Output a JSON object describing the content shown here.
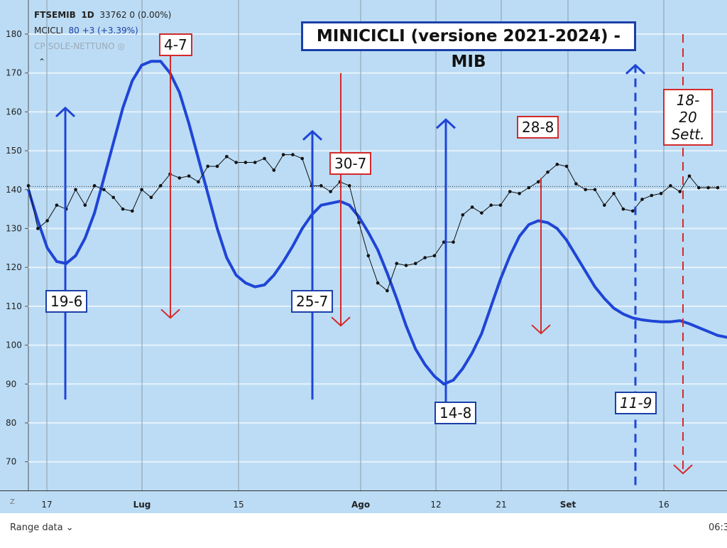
{
  "legend": {
    "symbol": "FTSEMIB",
    "interval": "1D",
    "price": "33762",
    "change": "0 (0.00%)",
    "indicator": "MCICLI",
    "indicator_value": "80",
    "indicator_change": "+3 (+3.39%)",
    "hidden_indicator": "CP:SOLE-NETTUNO"
  },
  "bottom": {
    "range_label": "Range data",
    "time": "06:3",
    "z_label": "Z"
  },
  "chart_data": {
    "type": "line",
    "title": "MINICICLI (versione 2021-2024) - MIB",
    "ylim": [
      65,
      188
    ],
    "yticks": [
      70,
      80,
      90,
      100,
      110,
      120,
      130,
      140,
      150,
      160,
      170,
      180
    ],
    "xticks": [
      "17",
      "Lug",
      "15",
      "Ago",
      "12",
      "21",
      "Set",
      "16"
    ],
    "reference_line": 140.8,
    "series": [
      {
        "name": "FTSEMIB",
        "color": "#111111",
        "values": [
          141,
          130,
          132,
          136,
          135,
          140,
          136,
          141,
          140,
          138,
          135,
          134.5,
          140,
          138,
          141,
          144,
          143,
          143.5,
          142,
          146,
          146,
          148.5,
          147,
          147,
          147,
          148,
          145,
          149,
          149,
          148,
          141,
          141,
          139.5,
          142,
          141,
          131.5,
          123,
          116,
          114,
          121,
          120.5,
          121,
          122.5,
          123,
          126.5,
          126.5,
          133.5,
          135.5,
          134,
          136,
          136,
          139.5,
          139,
          140.5,
          142,
          144.5,
          146.5,
          146,
          141.5,
          140,
          140,
          136,
          139,
          135,
          134.5,
          137.5,
          138.5,
          139,
          141,
          139.5,
          143.5,
          140.5,
          140.5,
          140.5
        ]
      },
      {
        "name": "MCICLI",
        "color": "#1f45d6",
        "values": [
          140,
          132,
          125,
          121.5,
          121,
          123,
          127.5,
          134,
          143,
          152,
          161,
          168,
          172,
          173,
          173,
          170,
          165,
          157,
          148,
          139,
          130,
          122.5,
          118,
          116,
          115,
          115.5,
          118,
          121.5,
          125.5,
          130,
          133.5,
          136,
          136.5,
          137,
          136,
          133,
          129,
          124.5,
          118.5,
          112,
          105,
          99,
          95,
          92,
          90,
          91,
          94,
          98,
          103,
          110,
          117,
          123,
          128,
          131,
          132,
          131.5,
          130,
          127,
          123,
          119,
          115,
          112,
          109.5,
          108,
          107,
          106.5,
          106.2,
          106,
          106,
          106.3,
          105.5,
          104.5,
          103.5,
          102.5,
          102
        ]
      }
    ],
    "annotations": [
      {
        "label": "19-6",
        "type": "minimum",
        "color": "#1f45d6"
      },
      {
        "label": "4-7",
        "type": "maximum",
        "color": "#d42a2a"
      },
      {
        "label": "25-7",
        "type": "minimum",
        "color": "#1f45d6"
      },
      {
        "label": "30-7",
        "type": "maximum",
        "color": "#d42a2a"
      },
      {
        "label": "14-8",
        "type": "minimum",
        "color": "#1f45d6"
      },
      {
        "label": "28-8",
        "type": "maximum",
        "color": "#d42a2a"
      },
      {
        "label": "11-9",
        "type": "minimum-projected",
        "color": "#1f45d6"
      },
      {
        "label": "18-20 Sett.",
        "type": "maximum-projected",
        "color": "#d42a2a"
      }
    ]
  }
}
